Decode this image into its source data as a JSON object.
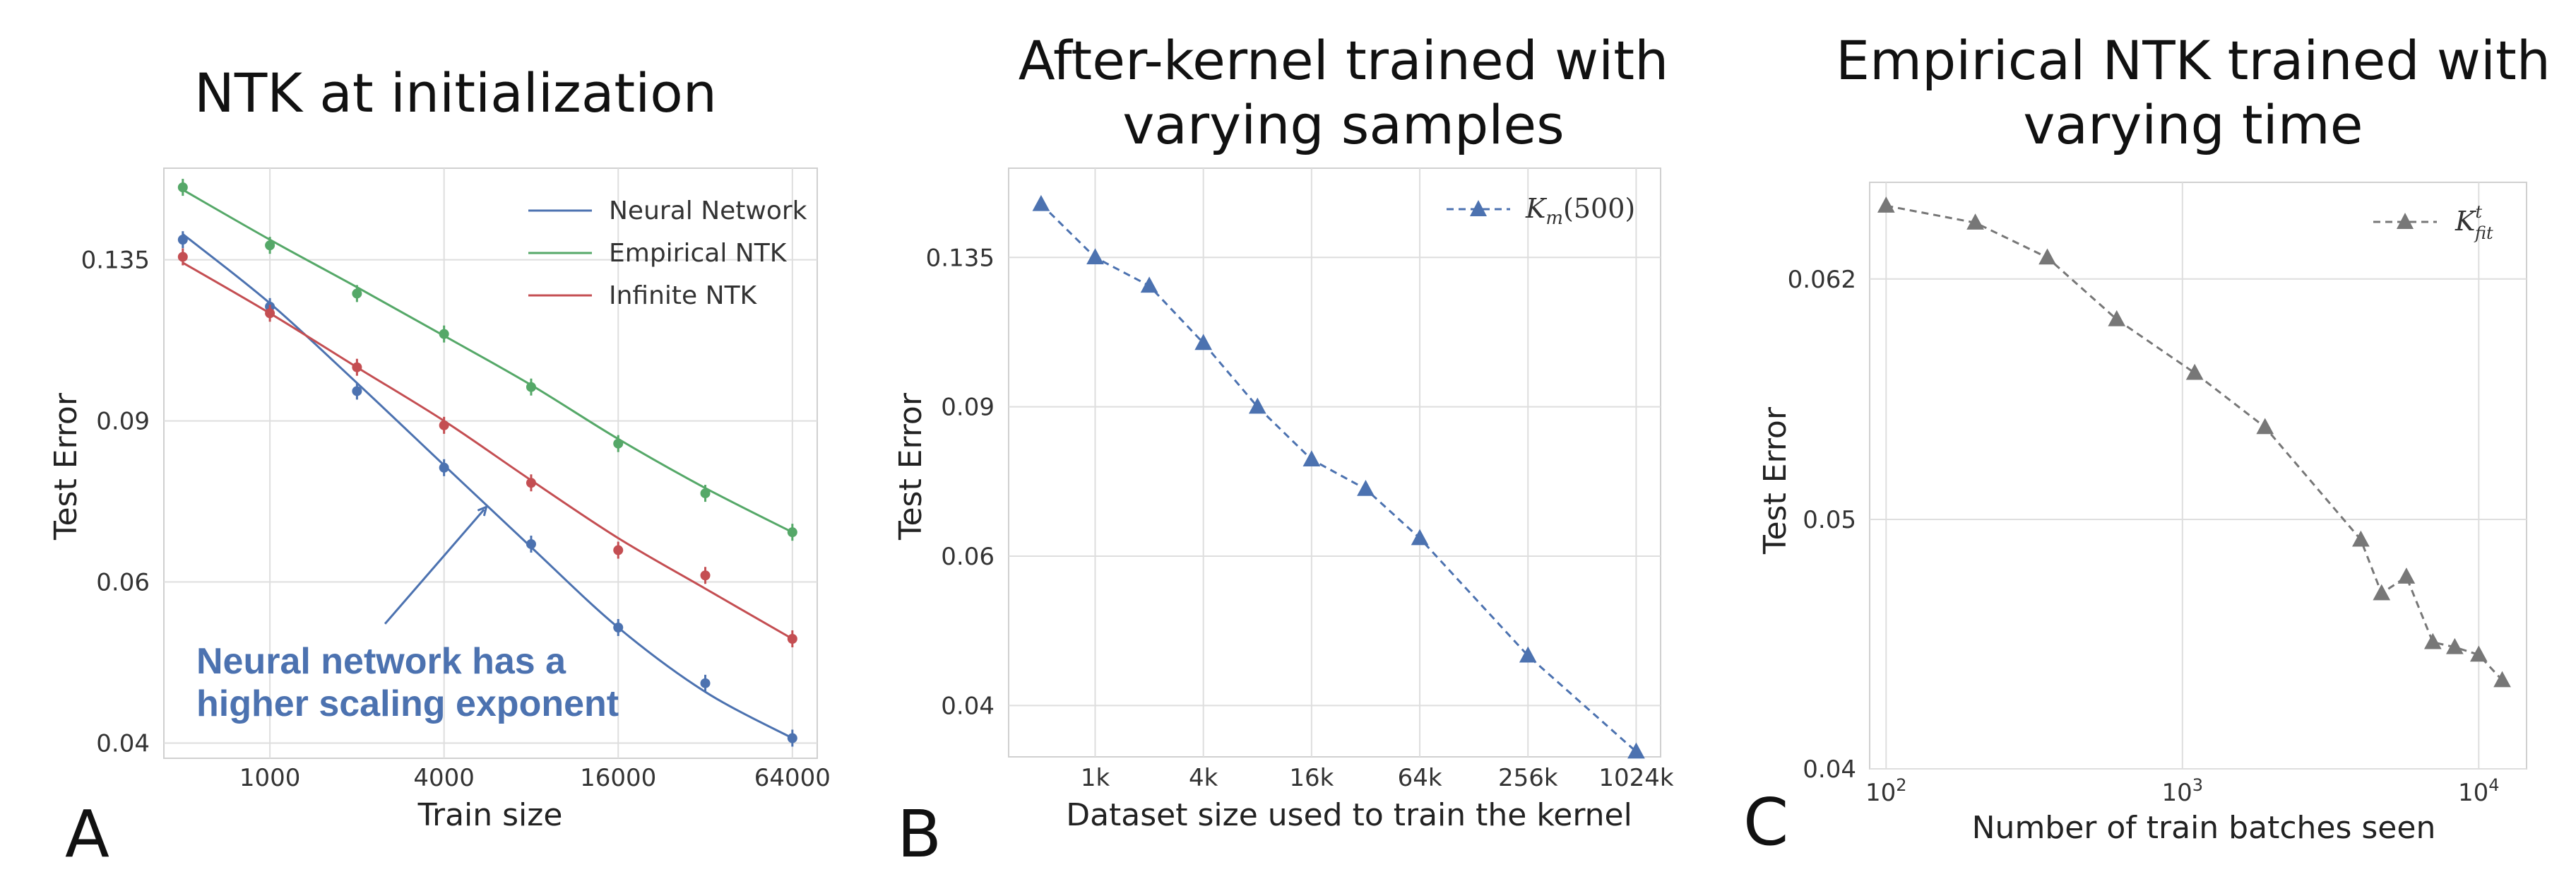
{
  "panels": [
    {
      "id": "A",
      "label": "A"
    },
    {
      "id": "B",
      "label": "B"
    },
    {
      "id": "C",
      "label": "C"
    }
  ],
  "chart_data": [
    {
      "type": "line",
      "title": "NTK at initialization",
      "xlabel": "Train size",
      "ylabel": "Test Error",
      "xscale": "log2",
      "yscale": "log",
      "x_ticks": [
        1000,
        4000,
        16000,
        64000
      ],
      "x_tick_labels": [
        "1000",
        "4000",
        "16000",
        "64000"
      ],
      "y_ticks": [
        0.04,
        0.06,
        0.09,
        0.135
      ],
      "y_tick_labels": [
        "0.04",
        "0.06",
        "0.09",
        "0.135"
      ],
      "xlim": [
        430,
        78000
      ],
      "ylim": [
        0.0385,
        0.17
      ],
      "legend": "top-right",
      "series": [
        {
          "name": "Neural Network",
          "color": "#4C72B0",
          "points": [
            [
              500,
              0.142
            ],
            [
              1000,
              0.12
            ],
            [
              2000,
              0.097
            ],
            [
              4000,
              0.08
            ],
            [
              8000,
              0.066
            ],
            [
              16000,
              0.0535
            ],
            [
              32000,
              0.0465
            ],
            [
              64000,
              0.0405
            ]
          ],
          "curve": [
            [
              500,
              0.144
            ],
            [
              1000,
              0.121
            ],
            [
              2000,
              0.099
            ],
            [
              4000,
              0.0805
            ],
            [
              8000,
              0.0655
            ],
            [
              16000,
              0.0535
            ],
            [
              32000,
              0.0455
            ],
            [
              64000,
              0.0405
            ]
          ]
        },
        {
          "name": "Empirical NTK",
          "color": "#55A868",
          "points": [
            [
              500,
              0.162
            ],
            [
              1000,
              0.14
            ],
            [
              2000,
              0.124
            ],
            [
              4000,
              0.112
            ],
            [
              8000,
              0.098
            ],
            [
              16000,
              0.085
            ],
            [
              32000,
              0.075
            ],
            [
              64000,
              0.068
            ]
          ],
          "curve": [
            [
              500,
              0.161
            ],
            [
              1000,
              0.142
            ],
            [
              2000,
              0.126
            ],
            [
              4000,
              0.1115
            ],
            [
              8000,
              0.0985
            ],
            [
              16000,
              0.086
            ],
            [
              32000,
              0.076
            ],
            [
              64000,
              0.068
            ]
          ]
        },
        {
          "name": "Infinite NTK",
          "color": "#C44E52",
          "points": [
            [
              500,
              0.136
            ],
            [
              1000,
              0.118
            ],
            [
              2000,
              0.103
            ],
            [
              4000,
              0.089
            ],
            [
              8000,
              0.077
            ],
            [
              16000,
              0.065
            ],
            [
              32000,
              0.061
            ],
            [
              64000,
              0.052
            ]
          ],
          "curve": [
            [
              500,
              0.134
            ],
            [
              1000,
              0.118
            ],
            [
              2000,
              0.103
            ],
            [
              4000,
              0.09
            ],
            [
              8000,
              0.0775
            ],
            [
              16000,
              0.067
            ],
            [
              32000,
              0.059
            ],
            [
              64000,
              0.052
            ]
          ]
        }
      ],
      "annotation": {
        "lines": [
          "Neural network has a",
          "higher scaling exponent"
        ],
        "arrow_to": [
          5500,
          0.072
        ],
        "arrow_from": [
          2500,
          0.054
        ]
      }
    },
    {
      "type": "line",
      "title": "After-kernel trained with varying samples",
      "title_lines": [
        "After-kernel trained with",
        "varying samples"
      ],
      "xlabel": "Dataset size used to train the kernel",
      "ylabel": "Test Error",
      "xscale": "log2",
      "yscale": "log",
      "x_ticks": [
        1000,
        4000,
        16000,
        64000,
        256000,
        1024000
      ],
      "x_tick_labels": [
        "1k",
        "4k",
        "16k",
        "64k",
        "256k",
        "1024k"
      ],
      "y_ticks": [
        0.04,
        0.06,
        0.09,
        0.135
      ],
      "y_tick_labels": [
        "0.04",
        "0.06",
        "0.09",
        "0.135"
      ],
      "xlim": [
        330,
        1400000
      ],
      "ylim": [
        0.0348,
        0.172
      ],
      "legend": "top-right",
      "series": [
        {
          "name": "K_m(500)",
          "legend_label": "Km(500)",
          "legend_base": "K",
          "legend_sub": "m",
          "legend_rest": "(500)",
          "color": "#4C72B0",
          "points": [
            [
              500,
              0.156
            ],
            [
              1000,
              0.135
            ],
            [
              2000,
              0.125
            ],
            [
              4000,
              0.107
            ],
            [
              8000,
              0.09
            ],
            [
              16000,
              0.078
            ],
            [
              32000,
              0.072
            ],
            [
              64000,
              0.063
            ],
            [
              256000,
              0.0458
            ],
            [
              1024000,
              0.0353
            ]
          ]
        }
      ]
    },
    {
      "type": "line",
      "title": "Empirical NTK trained with varying time",
      "title_lines": [
        "Empirical NTK trained with",
        "varying  time"
      ],
      "xlabel": "Number of train batches seen",
      "ylabel": "Test Error",
      "xscale": "log10",
      "yscale": "log",
      "x_ticks": [
        100,
        1000,
        10000
      ],
      "x_tick_labels": [
        "10",
        "10",
        "10"
      ],
      "x_tick_exponents": [
        "2",
        "3",
        "4"
      ],
      "y_ticks": [
        0.04,
        0.05,
        0.062
      ],
      "y_tick_labels": [
        "0.04",
        "0.05",
        "0.062"
      ],
      "xlim": [
        88,
        14500
      ],
      "ylim": [
        0.04,
        0.0676
      ],
      "legend": "top-right",
      "series": [
        {
          "name": "K^t_fit",
          "legend_base": "K",
          "legend_sup": "t",
          "legend_sub": "fit",
          "color": "#777777",
          "points": [
            [
              100,
              0.0662
            ],
            [
              200,
              0.0652
            ],
            [
              350,
              0.0632
            ],
            [
              600,
              0.0598
            ],
            [
              1100,
              0.057
            ],
            [
              1900,
              0.0543
            ],
            [
              4000,
              0.0491
            ],
            [
              4700,
              0.0468
            ],
            [
              5700,
              0.0475
            ],
            [
              7000,
              0.0448
            ],
            [
              8300,
              0.0446
            ],
            [
              10000,
              0.0443
            ],
            [
              12000,
              0.0433
            ]
          ]
        }
      ]
    }
  ]
}
